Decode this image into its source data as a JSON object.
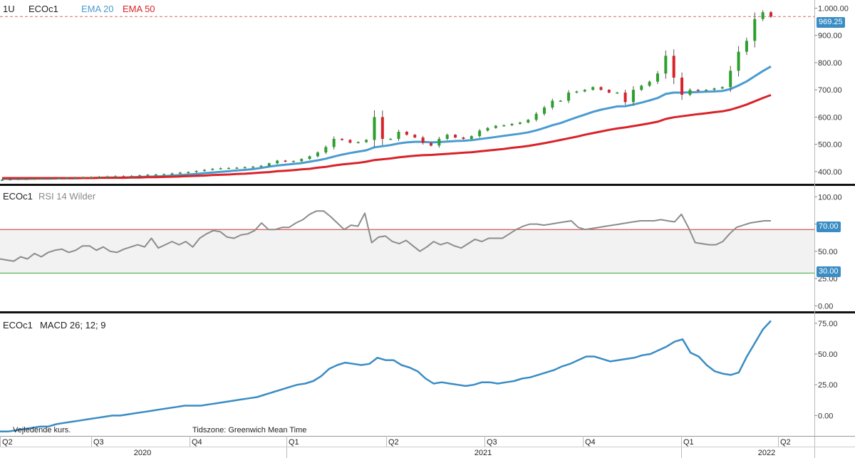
{
  "colors": {
    "ema20": "#4a9bd1",
    "ema50": "#d8232a",
    "up": "#2ca02c",
    "down": "#d8232a",
    "rsi": "#8c8c8c",
    "macd": "#3a8cc4",
    "band_fill": "#f2f2f2",
    "upper_line": "#cc3333",
    "lower_line": "#33aa33",
    "last_price": "#d66"
  },
  "header": {
    "interval": "1U",
    "symbol": "ECOc1",
    "ema20_label": "EMA 20",
    "ema50_label": "EMA 50"
  },
  "rsi_header": {
    "symbol": "ECOc1",
    "label": "RSI 14 Wilder"
  },
  "macd_header": {
    "symbol": "ECOc1",
    "label": "MACD 26; 12; 9"
  },
  "footer": {
    "note_left": "Vejledende kurs.",
    "timezone": "Tidszone: Greenwich Mean Time"
  },
  "price_flag": "969.25",
  "rsi_upper_flag": "70.00",
  "rsi_lower_flag": "30.00",
  "chart_data": [
    {
      "type": "candlestick",
      "panel": "price",
      "ylim": [
        355,
        1030
      ],
      "yticks": [
        "1.000.00",
        "900.00",
        "800.00",
        "700.00",
        "600.00",
        "500.00",
        "400.00"
      ],
      "ytick_values": [
        1000,
        900,
        800,
        700,
        600,
        500,
        400
      ],
      "last_price": 969.25,
      "closes": [
        370,
        372,
        373,
        373,
        374,
        375,
        375,
        376,
        377,
        378,
        379,
        380,
        381,
        382,
        383,
        382,
        384,
        386,
        388,
        389,
        390,
        393,
        396,
        398,
        402,
        406,
        410,
        412,
        413,
        414,
        416,
        418,
        421,
        430,
        440,
        437,
        438,
        446,
        456,
        470,
        490,
        520,
        516,
        506,
        508,
        516,
        600,
        520,
        520,
        546,
        535,
        525,
        505,
        495,
        520,
        535,
        525,
        520,
        530,
        550,
        560,
        568,
        570,
        575,
        580,
        590,
        612,
        635,
        660,
        660,
        690,
        694,
        700,
        710,
        700,
        690,
        690,
        655,
        700,
        715,
        730,
        760,
        825,
        745,
        682,
        700,
        698,
        700,
        705,
        710,
        770,
        840,
        880,
        960,
        985,
        969
      ],
      "series": [
        {
          "name": "EMA 20",
          "values": [
            373,
            373,
            373,
            373,
            374,
            374,
            374,
            375,
            375,
            375,
            376,
            376,
            377,
            378,
            378,
            378,
            379,
            380,
            381,
            382,
            383,
            385,
            387,
            389,
            391,
            394,
            396,
            399,
            401,
            404,
            406,
            409,
            413,
            418,
            422,
            425,
            428,
            431,
            436,
            441,
            447,
            455,
            462,
            468,
            473,
            478,
            489,
            493,
            497,
            503,
            507,
            509,
            509,
            507,
            508,
            510,
            512,
            513,
            515,
            519,
            523,
            527,
            531,
            535,
            539,
            544,
            551,
            560,
            570,
            578,
            589,
            599,
            609,
            619,
            627,
            633,
            639,
            640,
            646,
            653,
            661,
            670,
            685,
            690,
            690,
            691,
            692,
            693,
            694,
            696,
            703,
            716,
            731,
            750,
            769,
            786
          ]
        },
        {
          "name": "EMA 50",
          "values": [
            376,
            376,
            376,
            376,
            376,
            376,
            376,
            376,
            376,
            376,
            376,
            376,
            377,
            377,
            377,
            377,
            378,
            378,
            379,
            379,
            380,
            381,
            382,
            383,
            384,
            385,
            387,
            388,
            389,
            391,
            392,
            394,
            396,
            398,
            401,
            403,
            405,
            408,
            410,
            414,
            417,
            422,
            426,
            429,
            432,
            436,
            442,
            445,
            448,
            452,
            455,
            458,
            460,
            461,
            463,
            465,
            467,
            469,
            471,
            474,
            477,
            480,
            483,
            487,
            490,
            494,
            499,
            504,
            510,
            516,
            522,
            528,
            535,
            541,
            547,
            553,
            558,
            562,
            567,
            572,
            577,
            583,
            593,
            599,
            603,
            607,
            611,
            614,
            618,
            621,
            627,
            636,
            646,
            658,
            670,
            681
          ]
        }
      ]
    },
    {
      "type": "line",
      "panel": "rsi",
      "ylim": [
        -5,
        110
      ],
      "yticks": [
        "100.00",
        "75.00",
        "50.00",
        "25.00",
        "0.00"
      ],
      "ytick_values": [
        100,
        75,
        50,
        25,
        0
      ],
      "band": [
        30,
        70
      ],
      "series": [
        {
          "name": "RSI 14 Wilder",
          "values": [
            43,
            42,
            41,
            45,
            43,
            48,
            45,
            49,
            51,
            52,
            49,
            51,
            55,
            55,
            51,
            54,
            50,
            49,
            52,
            54,
            56,
            54,
            62,
            53,
            56,
            59,
            56,
            59,
            54,
            62,
            66,
            69,
            68,
            63,
            62,
            65,
            66,
            69,
            76,
            70,
            70,
            72,
            72,
            76,
            79,
            84,
            87,
            87,
            82,
            76,
            70,
            74,
            73,
            85,
            58,
            63,
            64,
            59,
            57,
            60,
            55,
            50,
            54,
            59,
            56,
            58,
            55,
            53,
            57,
            61,
            59,
            62,
            62,
            62,
            66,
            70,
            73,
            75,
            75,
            74,
            75,
            76,
            77,
            78,
            72,
            70,
            71,
            72,
            73,
            74,
            75,
            76,
            77,
            78,
            78,
            78,
            79,
            78,
            77,
            84,
            72,
            58,
            57,
            56,
            56,
            59,
            66,
            72,
            74,
            76,
            77,
            78,
            78
          ]
        }
      ]
    },
    {
      "type": "line",
      "panel": "macd",
      "ylim": [
        -16,
        83
      ],
      "yticks": [
        "75.00",
        "50.00",
        "25.00",
        "0.00"
      ],
      "ytick_values": [
        75,
        50,
        25,
        0
      ],
      "series": [
        {
          "name": "MACD 26; 12; 9",
          "values": [
            -13,
            -13,
            -12,
            -11,
            -10,
            -9,
            -9,
            -7,
            -6,
            -5,
            -4,
            -3,
            -2,
            -1,
            0,
            0,
            1,
            2,
            3,
            4,
            5,
            6,
            7,
            8,
            8,
            8,
            9,
            10,
            11,
            12,
            13,
            14,
            15,
            17,
            19,
            21,
            23,
            25,
            26,
            28,
            32,
            38,
            41,
            43,
            42,
            41,
            42,
            47,
            45,
            45,
            41,
            39,
            36,
            30,
            26,
            27,
            26,
            25,
            24,
            25,
            27,
            27,
            26,
            27,
            28,
            30,
            31,
            33,
            35,
            37,
            40,
            42,
            45,
            48,
            48,
            46,
            44,
            45,
            46,
            47,
            49,
            50,
            53,
            56,
            60,
            62,
            51,
            48,
            41,
            36,
            34,
            33,
            35,
            48,
            59,
            70,
            77
          ]
        }
      ]
    }
  ],
  "x_axis": {
    "quarters": [
      "Q2",
      "Q3",
      "Q4",
      "Q1",
      "Q2",
      "Q3",
      "Q4",
      "Q1",
      "Q2"
    ],
    "years": [
      "2020",
      "2021",
      "2022"
    ]
  }
}
